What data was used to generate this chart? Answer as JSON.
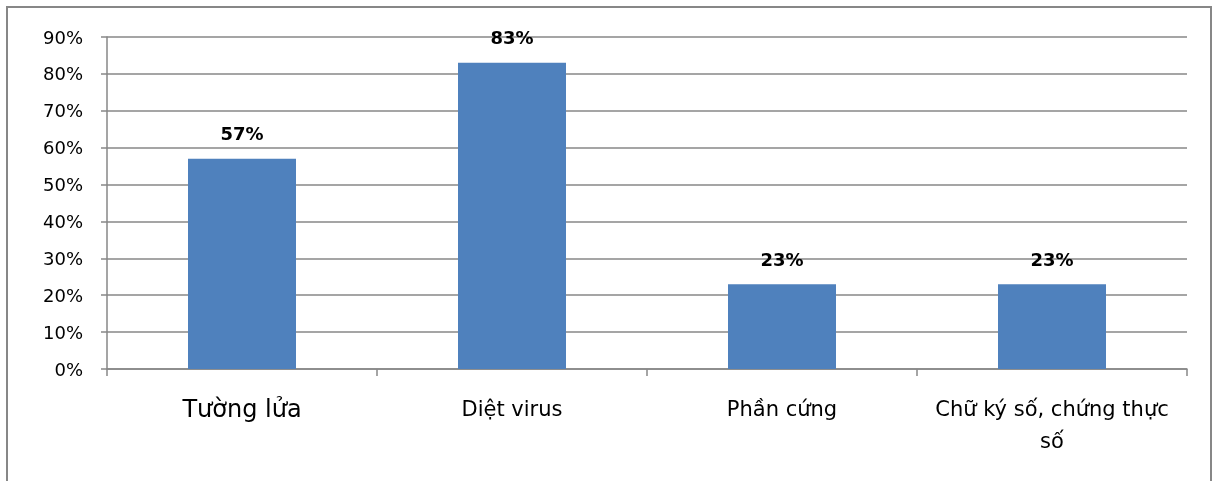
{
  "chart_data": {
    "type": "bar",
    "categories": [
      "Tường lửa",
      "Diệt virus",
      "Phần cứng",
      "Chữ ký số, chứng thực số"
    ],
    "values": [
      57,
      83,
      23,
      23
    ],
    "value_labels": [
      "57%",
      "83%",
      "23%",
      "23%"
    ],
    "color": "#4f81bd",
    "ylim": [
      0,
      90
    ],
    "yticks": [
      {
        "value": 0,
        "label": "0%"
      },
      {
        "value": 10,
        "label": "10%"
      },
      {
        "value": 20,
        "label": "20%"
      },
      {
        "value": 30,
        "label": "30%"
      },
      {
        "value": 40,
        "label": "40%"
      },
      {
        "value": 50,
        "label": "50%"
      },
      {
        "value": 60,
        "label": "60%"
      },
      {
        "value": 70,
        "label": "70%"
      },
      {
        "value": 80,
        "label": "80%"
      },
      {
        "value": 90,
        "label": "90%"
      }
    ],
    "grid": "y"
  }
}
